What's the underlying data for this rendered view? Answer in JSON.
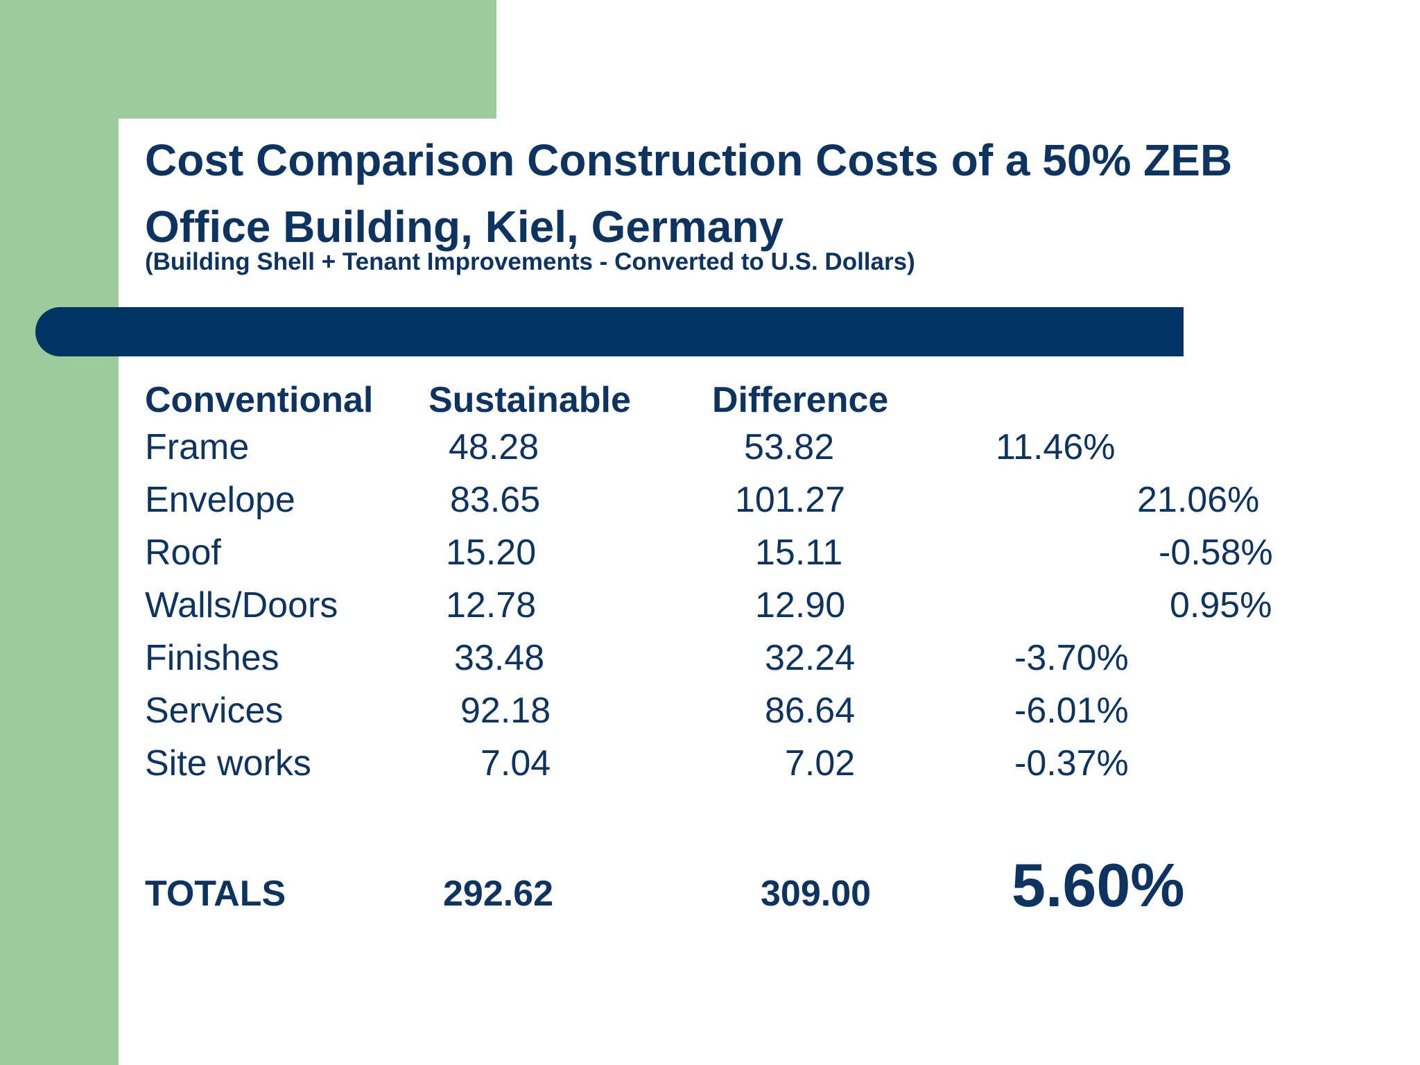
{
  "title": "Cost Comparison Construction Costs of a 50% ZEB Office Building, Kiel, Germany",
  "subtitle": "(Building Shell + Tenant Improvements - Converted to U.S. Dollars)",
  "colors": {
    "accent_green": "#9ccc9c",
    "navy": "#003464",
    "text": "#0d3460"
  },
  "table": {
    "headers": [
      "Conventional",
      "Sustainable",
      "Difference"
    ],
    "rows": [
      {
        "label": "Frame",
        "conventional": "48.28",
        "sustainable": "53.82",
        "difference": "11.46%"
      },
      {
        "label": "Envelope",
        "conventional": "83.65",
        "sustainable": "101.27",
        "difference": "21.06%"
      },
      {
        "label": "Roof",
        "conventional": "15.20",
        "sustainable": "15.11",
        "difference": "-0.58%"
      },
      {
        "label": "Walls/Doors",
        "conventional": "12.78",
        "sustainable": "12.90",
        "difference": "0.95%"
      },
      {
        "label": "Finishes",
        "conventional": "33.48",
        "sustainable": "32.24",
        "difference": "-3.70%"
      },
      {
        "label": "Services",
        "conventional": "92.18",
        "sustainable": "86.64",
        "difference": "-6.01%"
      },
      {
        "label": "Site works",
        "conventional": "7.04",
        "sustainable": "7.02",
        "difference": "-0.37%"
      }
    ],
    "totals": {
      "label": "TOTALS",
      "conventional": "292.62",
      "sustainable": "309.00",
      "difference": "5.60%"
    }
  }
}
